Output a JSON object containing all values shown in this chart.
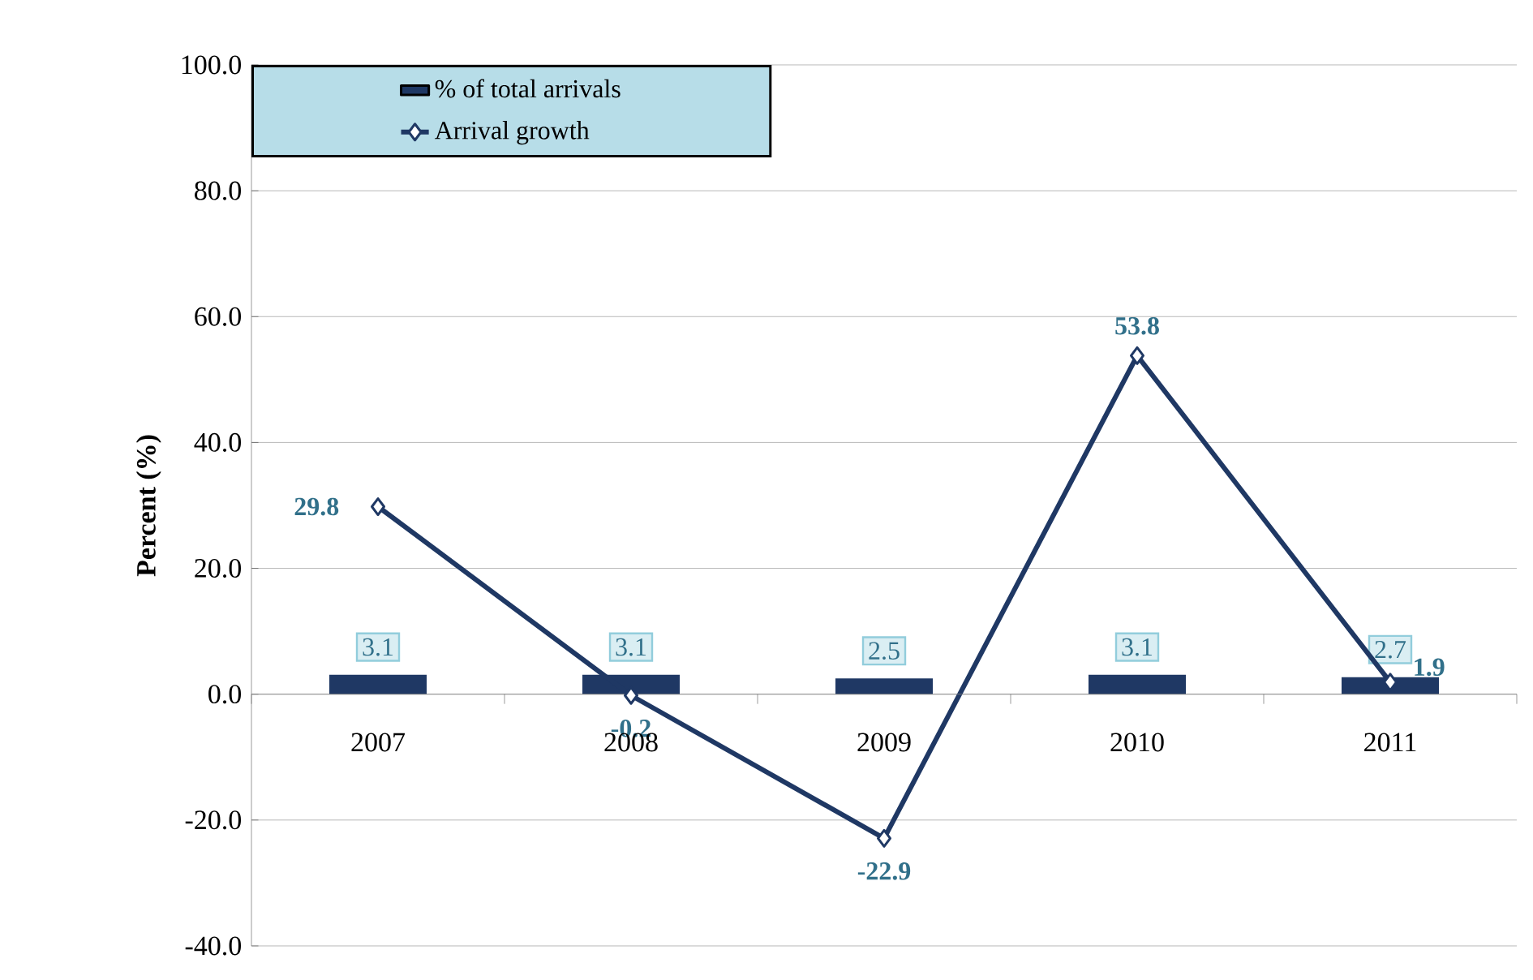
{
  "chart_data": {
    "type": "bar",
    "ylabel": "Percent (%)",
    "categories": [
      "2007",
      "2008",
      "2009",
      "2010",
      "2011"
    ],
    "series": [
      {
        "name": "% of total arrivals",
        "color": "#1f3864",
        "values": [
          3.1,
          3.1,
          2.5,
          3.1,
          2.7
        ]
      },
      {
        "name": "Arrival growth",
        "type": "line",
        "color": "#1f3864",
        "marker": "diamond",
        "values": [
          29.8,
          -0.2,
          -22.9,
          53.8,
          1.9
        ]
      }
    ],
    "ylim": [
      -40,
      100
    ],
    "yticks": [
      {
        "value": -40,
        "label": "-40.0"
      },
      {
        "value": -20,
        "label": "-20.0"
      },
      {
        "value": 0,
        "label": "0.0"
      },
      {
        "value": 20,
        "label": "20.0"
      },
      {
        "value": 40,
        "label": "40.0"
      },
      {
        "value": 60,
        "label": "60.0"
      },
      {
        "value": 80,
        "label": "80.0"
      },
      {
        "value": 100,
        "label": "100.0"
      }
    ],
    "grid": "y",
    "legend": "top left",
    "data_labels": true
  }
}
